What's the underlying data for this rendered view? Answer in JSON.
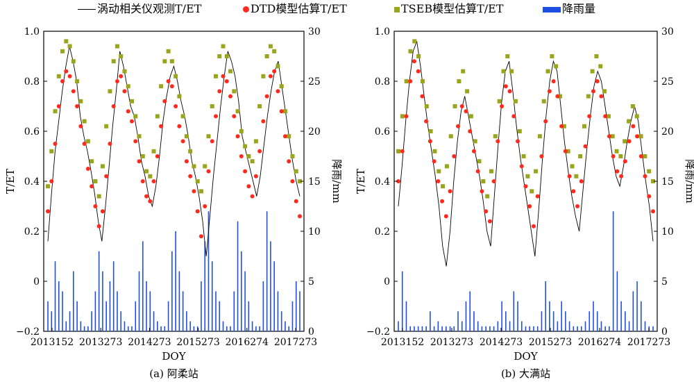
{
  "legend": {
    "items": [
      {
        "label": "涡动相关仪观测T/ET",
        "symbol": "line",
        "color": "#000000"
      },
      {
        "label": "DTD模型估算T/ET",
        "symbol": "circle",
        "color": "#ff2a1e"
      },
      {
        "label": "TSEB模型估算T/ET",
        "symbol": "square",
        "color": "#9aa51c"
      },
      {
        "label": "降雨量",
        "symbol": "bar",
        "color": "#1f4fe0"
      }
    ]
  },
  "chart_data": [
    {
      "type": "line",
      "caption": "(a) 阿柔站",
      "xlabel": "DOY",
      "ylabel": "T/ET",
      "y2label": "降雨/mm",
      "x_ticks": [
        "2013152",
        "2013273",
        "2014273",
        "2015273",
        "2016274",
        "2017273"
      ],
      "ylim": [
        -0.2,
        1.0
      ],
      "y_ticks": [
        "−0.2",
        "0",
        "0.2",
        "0.4",
        "0.6",
        "0.8",
        "1.0"
      ],
      "y2lim": [
        0,
        30
      ],
      "y2_ticks": [
        "0",
        "5",
        "10",
        "15",
        "20",
        "25",
        "30"
      ],
      "series": [
        {
          "name": "涡动相关仪观测T/ET",
          "kind": "line",
          "color": "#000000",
          "values": [
            0.16,
            0.35,
            0.52,
            0.64,
            0.76,
            0.86,
            0.94,
            0.88,
            0.8,
            0.66,
            0.58,
            0.52,
            0.44,
            0.35,
            0.24,
            0.16,
            0.3,
            0.46,
            0.62,
            0.76,
            0.92,
            0.86,
            0.78,
            0.7,
            0.66,
            0.58,
            0.48,
            0.42,
            0.34,
            0.3,
            0.38,
            0.5,
            0.64,
            0.74,
            0.82,
            0.86,
            0.8,
            0.72,
            0.66,
            0.58,
            0.48,
            0.42,
            0.34,
            0.24,
            0.1,
            0.26,
            0.42,
            0.56,
            0.7,
            0.82,
            0.92,
            0.88,
            0.82,
            0.72,
            0.58,
            0.52,
            0.46,
            0.4,
            0.34,
            0.42,
            0.54,
            0.66,
            0.76,
            0.84,
            0.88,
            0.78,
            0.68,
            0.58,
            0.48,
            0.4,
            0.34
          ]
        },
        {
          "name": "DTD模型估算T/ET",
          "kind": "scatter",
          "color": "#ff2a1e",
          "values": [
            0.28,
            0.4,
            0.55,
            0.7,
            0.8,
            0.84,
            0.82,
            0.76,
            0.7,
            0.62,
            0.55,
            0.45,
            0.38,
            0.3,
            0.22,
            0.28,
            0.42,
            0.55,
            0.7,
            0.8,
            0.82,
            0.76,
            0.68,
            0.64,
            0.56,
            0.48,
            0.4,
            0.34,
            0.32,
            0.4,
            0.5,
            0.62,
            0.72,
            0.8,
            0.78,
            0.7,
            0.62,
            0.56,
            0.48,
            0.42,
            0.36,
            0.28,
            0.18,
            0.3,
            0.44,
            0.56,
            0.66,
            0.76,
            0.82,
            0.8,
            0.74,
            0.66,
            0.58,
            0.5,
            0.44,
            0.38,
            0.34,
            0.42,
            0.52,
            0.64,
            0.74,
            0.82,
            0.84,
            0.76,
            0.68,
            0.58,
            0.48,
            0.4,
            0.32,
            0.26
          ]
        },
        {
          "name": "TSEB模型估算T/ET",
          "kind": "scatter",
          "color": "#9aa51c",
          "values": [
            0.38,
            0.52,
            0.68,
            0.82,
            0.92,
            0.96,
            0.94,
            0.88,
            0.8,
            0.72,
            0.64,
            0.56,
            0.48,
            0.4,
            0.34,
            0.46,
            0.62,
            0.76,
            0.88,
            0.94,
            0.9,
            0.84,
            0.78,
            0.72,
            0.66,
            0.58,
            0.5,
            0.44,
            0.42,
            0.52,
            0.66,
            0.78,
            0.88,
            0.92,
            0.88,
            0.82,
            0.74,
            0.66,
            0.58,
            0.52,
            0.46,
            0.4,
            0.36,
            0.46,
            0.58,
            0.7,
            0.82,
            0.9,
            0.94,
            0.9,
            0.84,
            0.76,
            0.68,
            0.6,
            0.54,
            0.5,
            0.48,
            0.56,
            0.7,
            0.82,
            0.9,
            0.94,
            0.92,
            0.86,
            0.78,
            0.68,
            0.58,
            0.5,
            0.44,
            0.4
          ]
        },
        {
          "name": "降雨量",
          "kind": "bar",
          "axis": "y2",
          "color": "#1f4fe0",
          "values": [
            3,
            2,
            7,
            5,
            4,
            1,
            2,
            6,
            3,
            1,
            0.5,
            0.5,
            2,
            4,
            8,
            6,
            3,
            5,
            7,
            4,
            2,
            1,
            0.5,
            0.5,
            3,
            6,
            9,
            5,
            4,
            2,
            1,
            0.5,
            0.5,
            3,
            8,
            10,
            6,
            4,
            2,
            1,
            0.5,
            0.5,
            5,
            9,
            12,
            7,
            4,
            3,
            1,
            0.5,
            0.5,
            4,
            11,
            8,
            6,
            3,
            1,
            0.5,
            0.5,
            5,
            12,
            9,
            7,
            4,
            2,
            1,
            0.5,
            3,
            5,
            4
          ]
        }
      ]
    },
    {
      "type": "line",
      "caption": "(b) 大满站",
      "xlabel": "DOY",
      "ylabel": "T/ET",
      "y2label": "降雨/mm",
      "x_ticks": [
        "2013152",
        "2013273",
        "2014273",
        "2015273",
        "2016274",
        "2017273"
      ],
      "ylim": [
        -0.2,
        1.0
      ],
      "y_ticks": [
        "−0.2",
        "0",
        "0.2",
        "0.4",
        "0.6",
        "0.8",
        "1.0"
      ],
      "y2lim": [
        0,
        30
      ],
      "y2_ticks": [
        "0",
        "5",
        "10",
        "15",
        "20",
        "25",
        "30"
      ],
      "series": [
        {
          "name": "涡动相关仪观测T/ET",
          "kind": "line",
          "color": "#000000",
          "values": [
            0.3,
            0.46,
            0.64,
            0.8,
            0.92,
            0.96,
            0.86,
            0.74,
            0.62,
            0.52,
            0.42,
            0.3,
            0.14,
            0.06,
            0.2,
            0.4,
            0.56,
            0.68,
            0.74,
            0.66,
            0.58,
            0.5,
            0.42,
            0.32,
            0.2,
            0.14,
            0.34,
            0.54,
            0.72,
            0.84,
            0.88,
            0.76,
            0.62,
            0.5,
            0.4,
            0.3,
            0.2,
            0.1,
            0.28,
            0.48,
            0.66,
            0.8,
            0.88,
            0.84,
            0.7,
            0.56,
            0.44,
            0.34,
            0.26,
            0.2,
            0.36,
            0.52,
            0.66,
            0.78,
            0.84,
            0.8,
            0.7,
            0.6,
            0.5,
            0.42,
            0.38,
            0.46,
            0.56,
            0.64,
            0.7,
            0.64,
            0.52,
            0.4,
            0.3,
            0.16
          ]
        },
        {
          "name": "DTD模型估算T/ET",
          "kind": "scatter",
          "color": "#ff2a1e",
          "values": [
            0.4,
            0.52,
            0.66,
            0.8,
            0.88,
            0.84,
            0.74,
            0.64,
            0.56,
            0.48,
            0.4,
            0.32,
            0.26,
            0.36,
            0.5,
            0.62,
            0.7,
            0.68,
            0.6,
            0.52,
            0.44,
            0.36,
            0.28,
            0.24,
            0.4,
            0.56,
            0.7,
            0.78,
            0.76,
            0.66,
            0.56,
            0.46,
            0.38,
            0.3,
            0.22,
            0.34,
            0.5,
            0.64,
            0.76,
            0.8,
            0.74,
            0.62,
            0.52,
            0.42,
            0.36,
            0.3,
            0.4,
            0.54,
            0.66,
            0.76,
            0.8,
            0.74,
            0.66,
            0.58,
            0.5,
            0.44,
            0.42,
            0.48,
            0.56,
            0.62,
            0.58,
            0.5,
            0.42,
            0.34,
            0.28
          ]
        },
        {
          "name": "TSEB模型估算T/ET",
          "kind": "scatter",
          "color": "#9aa51c",
          "values": [
            0.52,
            0.66,
            0.8,
            0.92,
            0.96,
            0.9,
            0.8,
            0.7,
            0.6,
            0.52,
            0.44,
            0.38,
            0.46,
            0.58,
            0.7,
            0.8,
            0.84,
            0.76,
            0.66,
            0.56,
            0.48,
            0.4,
            0.34,
            0.44,
            0.58,
            0.72,
            0.84,
            0.9,
            0.84,
            0.72,
            0.6,
            0.5,
            0.42,
            0.36,
            0.44,
            0.58,
            0.72,
            0.84,
            0.9,
            0.86,
            0.74,
            0.62,
            0.52,
            0.46,
            0.42,
            0.5,
            0.62,
            0.74,
            0.84,
            0.9,
            0.86,
            0.76,
            0.66,
            0.58,
            0.52,
            0.5,
            0.56,
            0.64,
            0.7,
            0.66,
            0.58,
            0.5,
            0.44,
            0.4
          ]
        },
        {
          "name": "降雨量",
          "kind": "bar",
          "axis": "y2",
          "color": "#1f4fe0",
          "values": [
            1,
            6,
            3,
            0.5,
            0.5,
            0.5,
            0.5,
            0.5,
            2,
            0.5,
            1,
            0.5,
            0.5,
            0.5,
            0.5,
            2,
            1,
            3,
            4,
            2,
            1,
            0.5,
            0.5,
            0.5,
            0.5,
            1,
            3,
            2,
            1,
            4,
            3,
            1,
            0.5,
            0.5,
            0.5,
            0.5,
            2,
            5,
            3,
            2,
            1,
            3,
            2,
            1,
            0.5,
            0.5,
            0.5,
            1,
            2,
            3,
            2,
            1,
            0.5,
            0.5,
            12,
            6,
            3,
            2,
            1,
            4,
            5,
            3,
            1,
            0.5,
            0.5
          ]
        }
      ]
    }
  ]
}
